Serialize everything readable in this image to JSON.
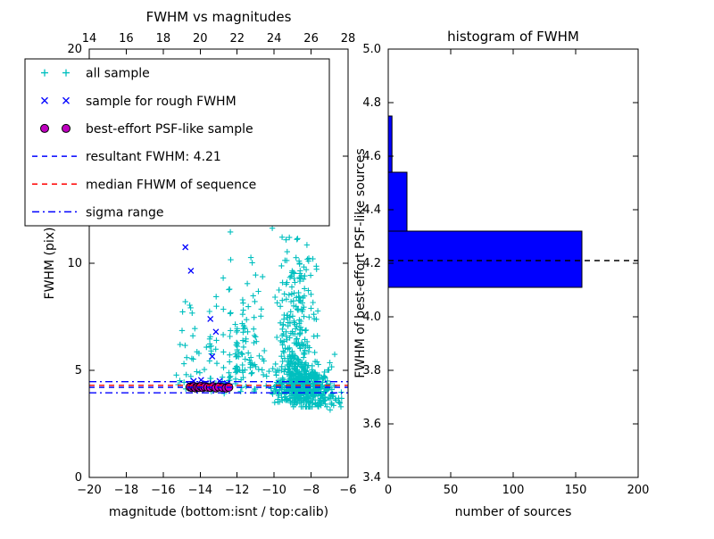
{
  "chart_data": [
    {
      "type": "scatter",
      "title": "FWHM vs magnitudes",
      "xlabel": "magnitude (bottom:isnt / top:calib)",
      "ylabel": "FWHM (pix)",
      "xlim": [
        -20,
        -6
      ],
      "ylim": [
        0,
        20
      ],
      "xticks": [
        -20,
        -18,
        -16,
        -14,
        -12,
        -10,
        -8,
        -6
      ],
      "yticks": [
        0,
        5,
        10,
        15,
        20
      ],
      "top_axis": {
        "lim": [
          14,
          28
        ],
        "ticks": [
          14,
          16,
          18,
          20,
          22,
          24,
          26,
          28
        ]
      },
      "grid": false,
      "legend_position": "upper-left",
      "series": [
        {
          "name": "all sample",
          "marker": "plus",
          "color": "#00bfbf",
          "clusters": [
            {
              "n": 520,
              "mag_normal": [
                -8.4,
                0.8
              ],
              "mag_clip": [
                -10.6,
                -6.25
              ],
              "fwhm_normal": [
                4.25,
                0.5
              ],
              "fwhm_clip": [
                3.3,
                6.6
              ],
              "trend_per_mag": 0.12,
              "trend_ref": -8.5
            },
            {
              "n": 220,
              "mag_normal": [
                -8.8,
                0.55
              ],
              "mag_clip": [
                -10.1,
                -7.4
              ],
              "fwhm_base": 5.0,
              "fwhm_scale": 3.0,
              "fwhm_clip": [
                5.0,
                15.4
              ]
            },
            {
              "n": 60,
              "mag_uniform": [
                -12.1,
                -10.5
              ],
              "fwhm_base": 4.0,
              "fwhm_scale": 2.8,
              "fwhm_clip": [
                3.7,
                14.5
              ]
            },
            {
              "n": 75,
              "mag_columns": [
                -13.45,
                -13.1,
                -12.75,
                -12.4,
                -12.05,
                -11.7
              ],
              "mag_jitter": 0.06,
              "fwhm_base": 3.9,
              "fwhm_scale": 2.6,
              "fwhm_clip": [
                3.6,
                12.5
              ]
            },
            {
              "n": 28,
              "mag_uniform": [
                -15.3,
                -13.6
              ],
              "fwhm_base": 4.0,
              "fwhm_scale": 2.2,
              "fwhm_clip": [
                3.7,
                12.0
              ]
            },
            {
              "n": 25,
              "mag_uniform": [
                -7.5,
                -6.3
              ],
              "fwhm_normal": [
                3.6,
                0.25
              ],
              "fwhm_clip": [
                3.0,
                4.2
              ]
            }
          ]
        },
        {
          "name": "sample for rough FWHM",
          "marker": "x",
          "color": "#0000ff",
          "points": [
            [
              -14.8,
              10.75
            ],
            [
              -14.5,
              9.65
            ],
            [
              -13.45,
              7.4
            ],
            [
              -13.15,
              6.8
            ],
            [
              -13.35,
              5.65
            ],
            [
              -13.7,
              4.4
            ],
            [
              -14.6,
              4.35
            ],
            [
              -14.35,
              4.5
            ],
            [
              -14.15,
              4.25
            ],
            [
              -13.95,
              4.55
            ],
            [
              -13.75,
              4.3
            ],
            [
              -13.55,
              4.2
            ],
            [
              -13.35,
              4.4
            ],
            [
              -13.15,
              4.3
            ],
            [
              -12.95,
              4.5
            ],
            [
              -12.75,
              4.3
            ],
            [
              -12.55,
              4.4
            ],
            [
              -12.4,
              4.25
            ]
          ]
        },
        {
          "name": "best-effort PSF-like sample",
          "marker": "circle",
          "color": "#bf00bf",
          "edge": "#000000",
          "points": [
            [
              -14.55,
              4.22
            ],
            [
              -14.45,
              4.2
            ],
            [
              -14.35,
              4.24
            ],
            [
              -14.25,
              4.18
            ],
            [
              -14.15,
              4.22
            ],
            [
              -14.05,
              4.2
            ],
            [
              -13.95,
              4.25
            ],
            [
              -13.85,
              4.19
            ],
            [
              -13.75,
              4.23
            ],
            [
              -13.6,
              4.21
            ],
            [
              -13.45,
              4.2
            ],
            [
              -13.3,
              4.24
            ],
            [
              -13.15,
              4.18
            ],
            [
              -13.0,
              4.22
            ],
            [
              -12.8,
              4.2
            ],
            [
              -12.6,
              4.17
            ],
            [
              -12.45,
              4.21
            ]
          ]
        }
      ],
      "lines": [
        {
          "label": "resultant FWHM: 4.21",
          "y": 4.21,
          "style": "dashed",
          "color": "#0000ff"
        },
        {
          "label": "median FHWM of sequence",
          "y": 4.3,
          "style": "dashed",
          "color": "#ff0000"
        },
        {
          "label": "sigma range",
          "y": [
            4.47,
            3.95
          ],
          "style": "dashdot",
          "color": "#0000ff"
        }
      ],
      "legend": [
        {
          "label": "all sample",
          "marker": "plus",
          "color": "#00bfbf"
        },
        {
          "label": "sample for rough FWHM",
          "marker": "x",
          "color": "#0000ff"
        },
        {
          "label": "best-effort PSF-like sample",
          "marker": "circle",
          "color": "#bf00bf",
          "edge": "#000000"
        },
        {
          "label": "resultant FWHM: 4.21",
          "marker": "dashed",
          "color": "#0000ff"
        },
        {
          "label": "median FHWM of sequence",
          "marker": "dashed",
          "color": "#ff0000"
        },
        {
          "label": "sigma range",
          "marker": "dashdot",
          "color": "#0000ff"
        }
      ]
    },
    {
      "type": "bar-horizontal",
      "title": "histogram of FWHM",
      "xlabel": "number of sources",
      "ylabel": "FWHM of best-effort PSF-like sources",
      "xlim": [
        0,
        200
      ],
      "ylim": [
        3.4,
        5.0
      ],
      "xticks": [
        0,
        50,
        100,
        150,
        200
      ],
      "yticks": [
        3.4,
        3.6,
        3.8,
        4.0,
        4.2,
        4.4,
        4.6,
        4.8,
        5.0
      ],
      "grid": false,
      "bar_color": "#0000ff",
      "bar_edge": "#000000",
      "bars": [
        {
          "from": 4.11,
          "to": 4.32,
          "count": 155
        },
        {
          "from": 4.32,
          "to": 4.54,
          "count": 15
        },
        {
          "from": 4.54,
          "to": 4.75,
          "count": 3
        }
      ],
      "reference_line": {
        "label": "resultant FWHM",
        "y": 4.21,
        "style": "dashed",
        "color": "#000000"
      }
    }
  ]
}
